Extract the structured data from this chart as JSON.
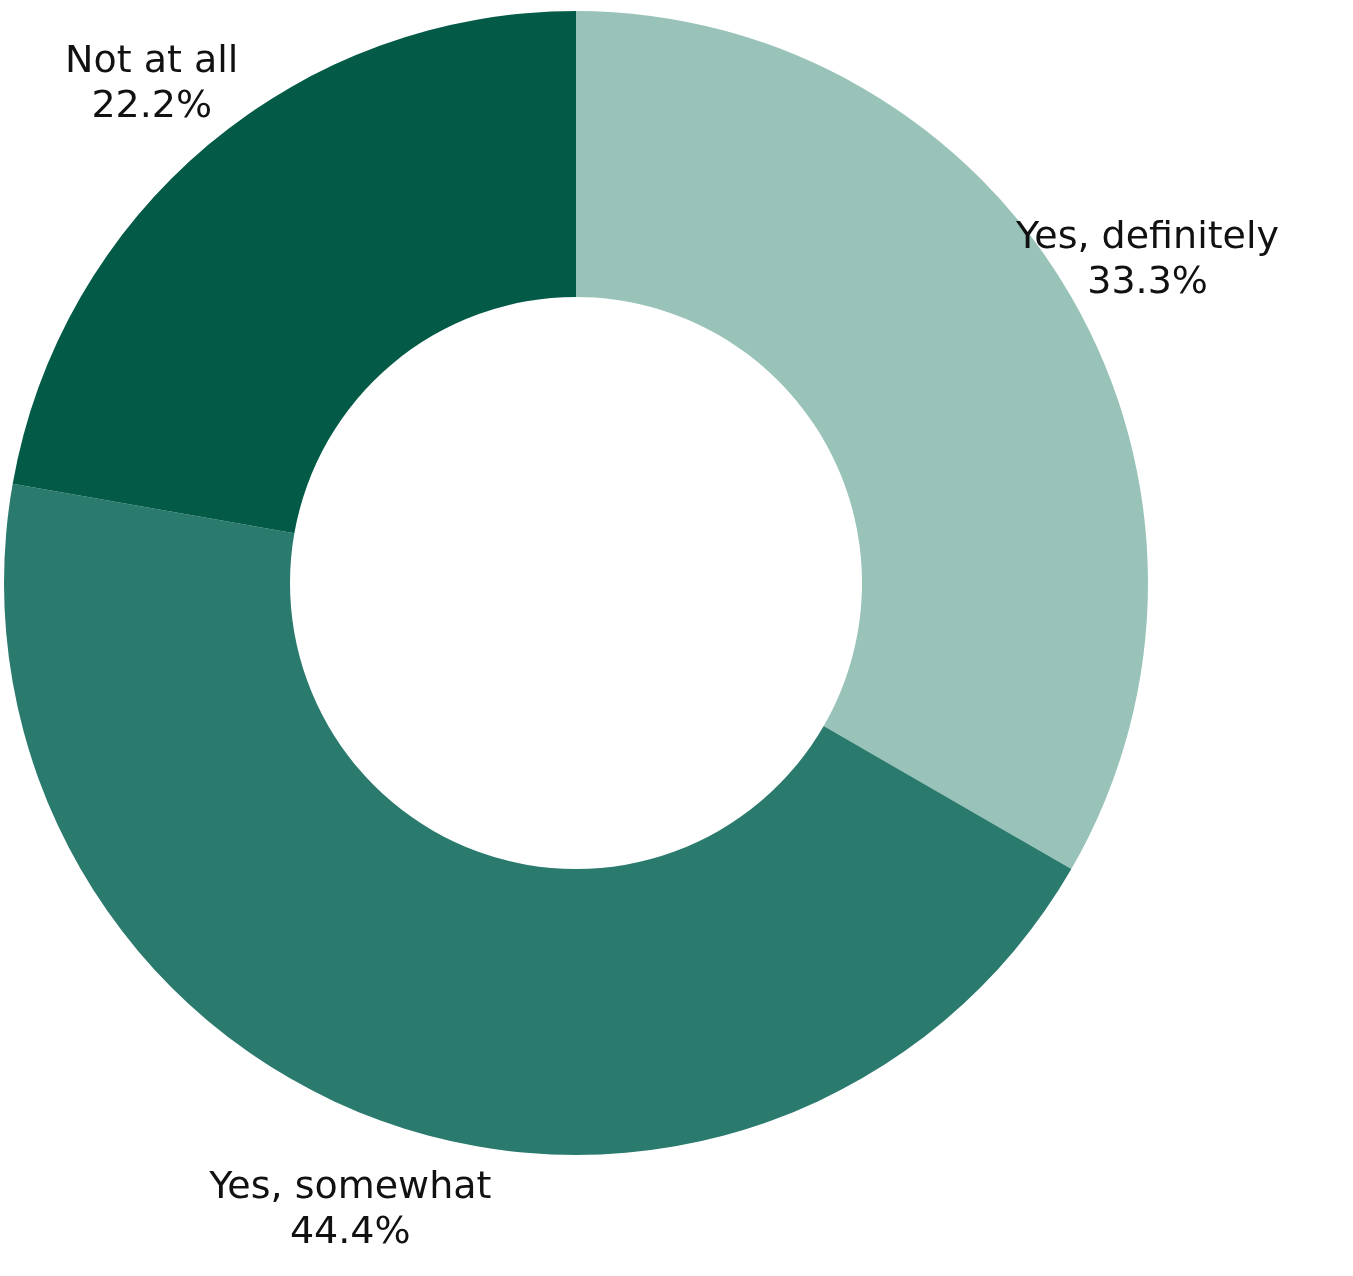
{
  "chart_data": {
    "type": "donut",
    "categories": [
      "Yes, definitely",
      "Yes, somewhat",
      "Not at all"
    ],
    "values": [
      33.3,
      44.4,
      22.2
    ],
    "colors": [
      "#99c3b9",
      "#2b7a6e",
      "#025a47"
    ],
    "value_labels": [
      "33.3%",
      "44.4%",
      "22.2%"
    ],
    "legend": false
  }
}
